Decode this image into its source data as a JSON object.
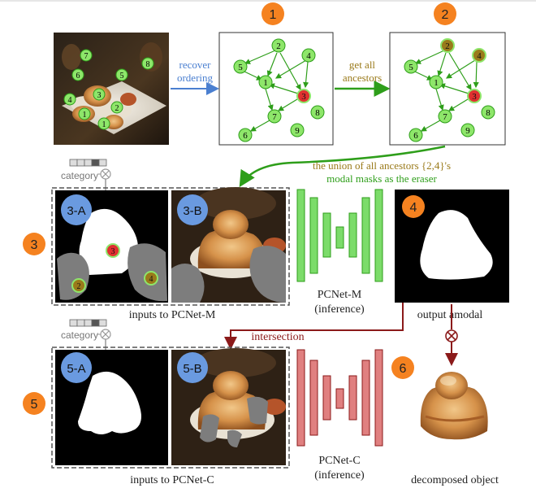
{
  "steps": {
    "s1": "1",
    "s2": "2",
    "s3": "3",
    "s4": "4",
    "s5": "5",
    "s6": "6"
  },
  "arrows": {
    "recover_line1": "recover",
    "recover_line2": "ordering",
    "ancestors_line1": "get all",
    "ancestors_line2": "ancestors",
    "union_line1": "the union of all ancestors {2,4}'s",
    "union_line2": "modal masks as the eraser",
    "intersection": "intersection"
  },
  "graph_nodes": [
    "1",
    "2",
    "3",
    "4",
    "5",
    "6",
    "7",
    "8",
    "9"
  ],
  "photo_nodes": [
    "7",
    "6",
    "8",
    "5",
    "3",
    "4",
    "2",
    "1"
  ],
  "panels": {
    "p3a": "3-A",
    "p3b": "3-B",
    "p5a": "5-A",
    "p5b": "5-B"
  },
  "labels": {
    "category_top": "category",
    "category_bottom": "category",
    "pcnet_m_1": "PCNet-M",
    "pcnet_m_2": "(inference)",
    "pcnet_c_1": "PCNet-C",
    "pcnet_c_2": "(inference)",
    "inputs_m": "inputs to PCNet-M",
    "inputs_c": "inputs to PCNet-C",
    "output_amodal": "output amodal",
    "decomposed": "decomposed object"
  },
  "mask_nodes": {
    "m3": "3",
    "m2": "2",
    "m4": "4"
  },
  "colors": {
    "step_orange": "#f58220",
    "node_green": "#8ee66a",
    "node_green_stroke": "#2e9e1a",
    "ancestor_brown": "#9a7a1a",
    "target_red": "#e03030",
    "arrow_blue": "#4a7fd0",
    "arrow_green": "#2e9e1a",
    "arrow_darkred": "#8b1a1a",
    "pcnet_m": "#7cdc6a",
    "pcnet_c": "#e08080",
    "panel_blue": "#6a9ae0"
  }
}
